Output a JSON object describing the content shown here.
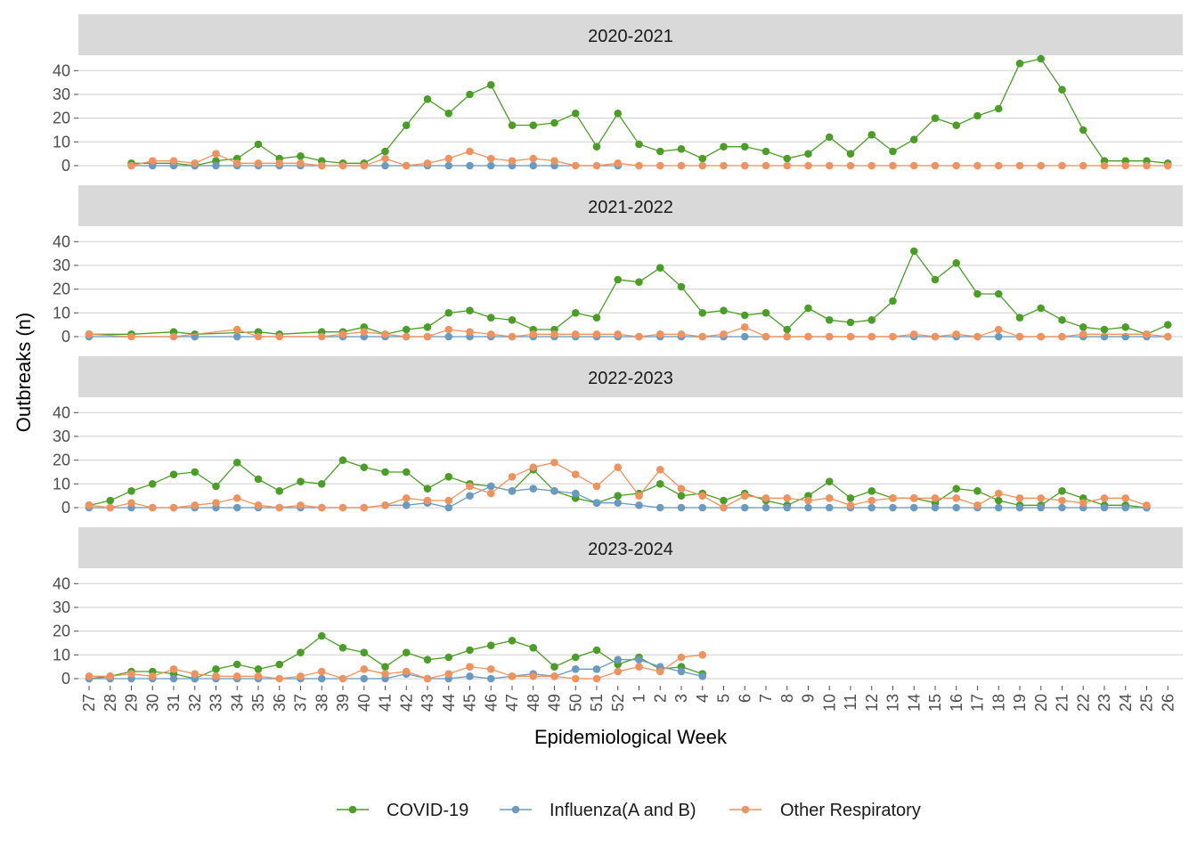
{
  "chart_data": {
    "type": "line",
    "xlabel": "Epidemiological Week",
    "ylabel": "Outbreaks (n)",
    "x": [
      "27",
      "28",
      "29",
      "30",
      "31",
      "32",
      "33",
      "34",
      "35",
      "36",
      "37",
      "38",
      "39",
      "40",
      "41",
      "42",
      "43",
      "44",
      "45",
      "46",
      "47",
      "48",
      "49",
      "50",
      "51",
      "52",
      "1",
      "2",
      "3",
      "4",
      "5",
      "6",
      "7",
      "8",
      "9",
      "10",
      "11",
      "12",
      "13",
      "14",
      "15",
      "16",
      "17",
      "18",
      "19",
      "20",
      "21",
      "22",
      "23",
      "24",
      "25",
      "26"
    ],
    "ylim": [
      0,
      45
    ],
    "yticks": [
      0,
      10,
      20,
      30,
      40
    ],
    "grid": true,
    "legend_position": "bottom",
    "legend": [
      {
        "name": "COVID-19",
        "color": "#4a9e26"
      },
      {
        "name": "Influenza(A and B)",
        "color": "#6a9ac0"
      },
      {
        "name": "Other Respiratory",
        "color": "#f0925e"
      }
    ],
    "panels": [
      {
        "title": "2020-2021",
        "series": [
          {
            "name": "COVID-19",
            "values": [
              null,
              null,
              1,
              1,
              1,
              0,
              2,
              3,
              9,
              3,
              4,
              2,
              1,
              1,
              6,
              17,
              28,
              22,
              30,
              34,
              17,
              17,
              18,
              22,
              8,
              22,
              9,
              6,
              7,
              3,
              8,
              8,
              6,
              3,
              5,
              12,
              5,
              13,
              6,
              11,
              20,
              17,
              21,
              24,
              43,
              45,
              32,
              15,
              2,
              2,
              2,
              1
            ]
          },
          {
            "name": "Influenza(A and B)",
            "values": [
              null,
              null,
              0,
              0,
              0,
              0,
              0,
              0,
              0,
              0,
              0,
              0,
              0,
              0,
              0,
              0,
              0,
              0,
              0,
              0,
              0,
              0,
              0,
              null,
              null,
              0,
              null,
              null,
              null,
              null,
              null,
              null,
              null,
              null,
              null,
              null,
              null,
              null,
              null,
              null,
              null,
              null,
              null,
              null,
              null,
              null,
              null,
              null,
              null,
              null,
              null,
              null
            ]
          },
          {
            "name": "Other Respiratory",
            "values": [
              null,
              null,
              0,
              2,
              2,
              1,
              5,
              1,
              1,
              1,
              1,
              0,
              0,
              0,
              3,
              0,
              1,
              3,
              6,
              3,
              2,
              3,
              2,
              0,
              0,
              1,
              0,
              0,
              0,
              0,
              0,
              0,
              0,
              0,
              0,
              0,
              0,
              0,
              0,
              0,
              0,
              0,
              0,
              0,
              0,
              0,
              0,
              0,
              0,
              0,
              0,
              0
            ]
          }
        ]
      },
      {
        "title": "2021-2022",
        "series": [
          {
            "name": "COVID-19",
            "values": [
              1,
              null,
              1,
              null,
              2,
              1,
              null,
              null,
              2,
              1,
              null,
              2,
              2,
              4,
              1,
              3,
              4,
              10,
              11,
              8,
              7,
              3,
              3,
              10,
              8,
              24,
              23,
              29,
              21,
              10,
              11,
              9,
              10,
              3,
              12,
              7,
              6,
              7,
              15,
              36,
              24,
              31,
              18,
              18,
              8,
              12,
              7,
              4,
              3,
              4,
              1,
              5
            ]
          },
          {
            "name": "Influenza(A and B)",
            "values": [
              0,
              null,
              null,
              null,
              null,
              0,
              null,
              0,
              null,
              null,
              null,
              null,
              0,
              0,
              0,
              0,
              0,
              0,
              0,
              0,
              0,
              0,
              0,
              0,
              0,
              0,
              0,
              0,
              0,
              0,
              0,
              0,
              0,
              0,
              0,
              0,
              0,
              0,
              0,
              0,
              0,
              0,
              0,
              0,
              0,
              0,
              0,
              0,
              0,
              0,
              0,
              0
            ]
          },
          {
            "name": "Other Respiratory",
            "values": [
              1,
              null,
              0,
              null,
              0,
              null,
              null,
              3,
              0,
              0,
              null,
              0,
              1,
              2,
              1,
              0,
              0,
              3,
              2,
              1,
              0,
              1,
              1,
              1,
              1,
              1,
              0,
              1,
              1,
              0,
              1,
              4,
              0,
              0,
              0,
              0,
              0,
              0,
              0,
              1,
              0,
              1,
              0,
              3,
              0,
              0,
              0,
              1,
              null,
              null,
              1,
              0
            ]
          }
        ]
      },
      {
        "title": "2022-2023",
        "series": [
          {
            "name": "COVID-19",
            "values": [
              1,
              3,
              7,
              10,
              14,
              15,
              9,
              19,
              12,
              7,
              11,
              10,
              20,
              17,
              15,
              15,
              8,
              13,
              10,
              9,
              7,
              16,
              7,
              4,
              2,
              5,
              6,
              10,
              5,
              6,
              3,
              6,
              3,
              1,
              5,
              11,
              4,
              7,
              4,
              4,
              2,
              8,
              7,
              3,
              1,
              1,
              7,
              4,
              1,
              1,
              0,
              null
            ]
          },
          {
            "name": "Influenza(A and B)",
            "values": [
              0,
              0,
              0,
              0,
              0,
              0,
              0,
              0,
              0,
              0,
              0,
              0,
              0,
              0,
              1,
              1,
              2,
              0,
              5,
              9,
              7,
              8,
              7,
              6,
              2,
              2,
              1,
              0,
              0,
              0,
              0,
              0,
              0,
              0,
              0,
              0,
              0,
              0,
              0,
              0,
              0,
              0,
              0,
              0,
              0,
              0,
              0,
              0,
              0,
              0,
              0,
              null
            ]
          },
          {
            "name": "Other Respiratory",
            "values": [
              1,
              0,
              2,
              0,
              0,
              1,
              2,
              4,
              1,
              0,
              1,
              0,
              0,
              0,
              1,
              4,
              3,
              3,
              9,
              6,
              13,
              17,
              19,
              14,
              9,
              17,
              5,
              16,
              8,
              5,
              0,
              5,
              4,
              4,
              3,
              4,
              1,
              3,
              4,
              4,
              4,
              4,
              1,
              6,
              4,
              4,
              3,
              2,
              4,
              4,
              1,
              null
            ]
          }
        ]
      },
      {
        "title": "2023-2024",
        "series": [
          {
            "name": "COVID-19",
            "values": [
              0,
              1,
              3,
              3,
              2,
              0,
              4,
              6,
              4,
              6,
              11,
              18,
              13,
              11,
              5,
              11,
              8,
              9,
              12,
              14,
              16,
              13,
              5,
              9,
              12,
              6,
              9,
              4,
              5,
              2,
              null,
              null,
              null,
              null,
              null,
              null,
              null,
              null,
              null,
              null,
              null,
              null,
              null,
              null,
              null,
              null,
              null,
              null,
              null,
              null,
              null,
              null
            ]
          },
          {
            "name": "Influenza(A and B)",
            "values": [
              0,
              0,
              0,
              0,
              0,
              0,
              0,
              0,
              0,
              null,
              0,
              0,
              null,
              0,
              0,
              2,
              0,
              0,
              1,
              0,
              1,
              2,
              1,
              4,
              4,
              8,
              8,
              5,
              3,
              1,
              null,
              null,
              null,
              null,
              null,
              null,
              null,
              null,
              null,
              null,
              null,
              null,
              null,
              null,
              null,
              null,
              null,
              null,
              null,
              null,
              null,
              null
            ]
          },
          {
            "name": "Other Respiratory",
            "values": [
              1,
              1,
              2,
              1,
              4,
              2,
              1,
              1,
              1,
              0,
              1,
              3,
              0,
              4,
              2,
              3,
              0,
              2,
              5,
              4,
              1,
              1,
              1,
              0,
              0,
              3,
              5,
              3,
              9,
              10,
              null,
              null,
              null,
              null,
              null,
              null,
              null,
              null,
              null,
              null,
              null,
              null,
              null,
              null,
              null,
              null,
              null,
              null,
              null,
              null,
              null,
              null
            ]
          }
        ]
      }
    ]
  }
}
